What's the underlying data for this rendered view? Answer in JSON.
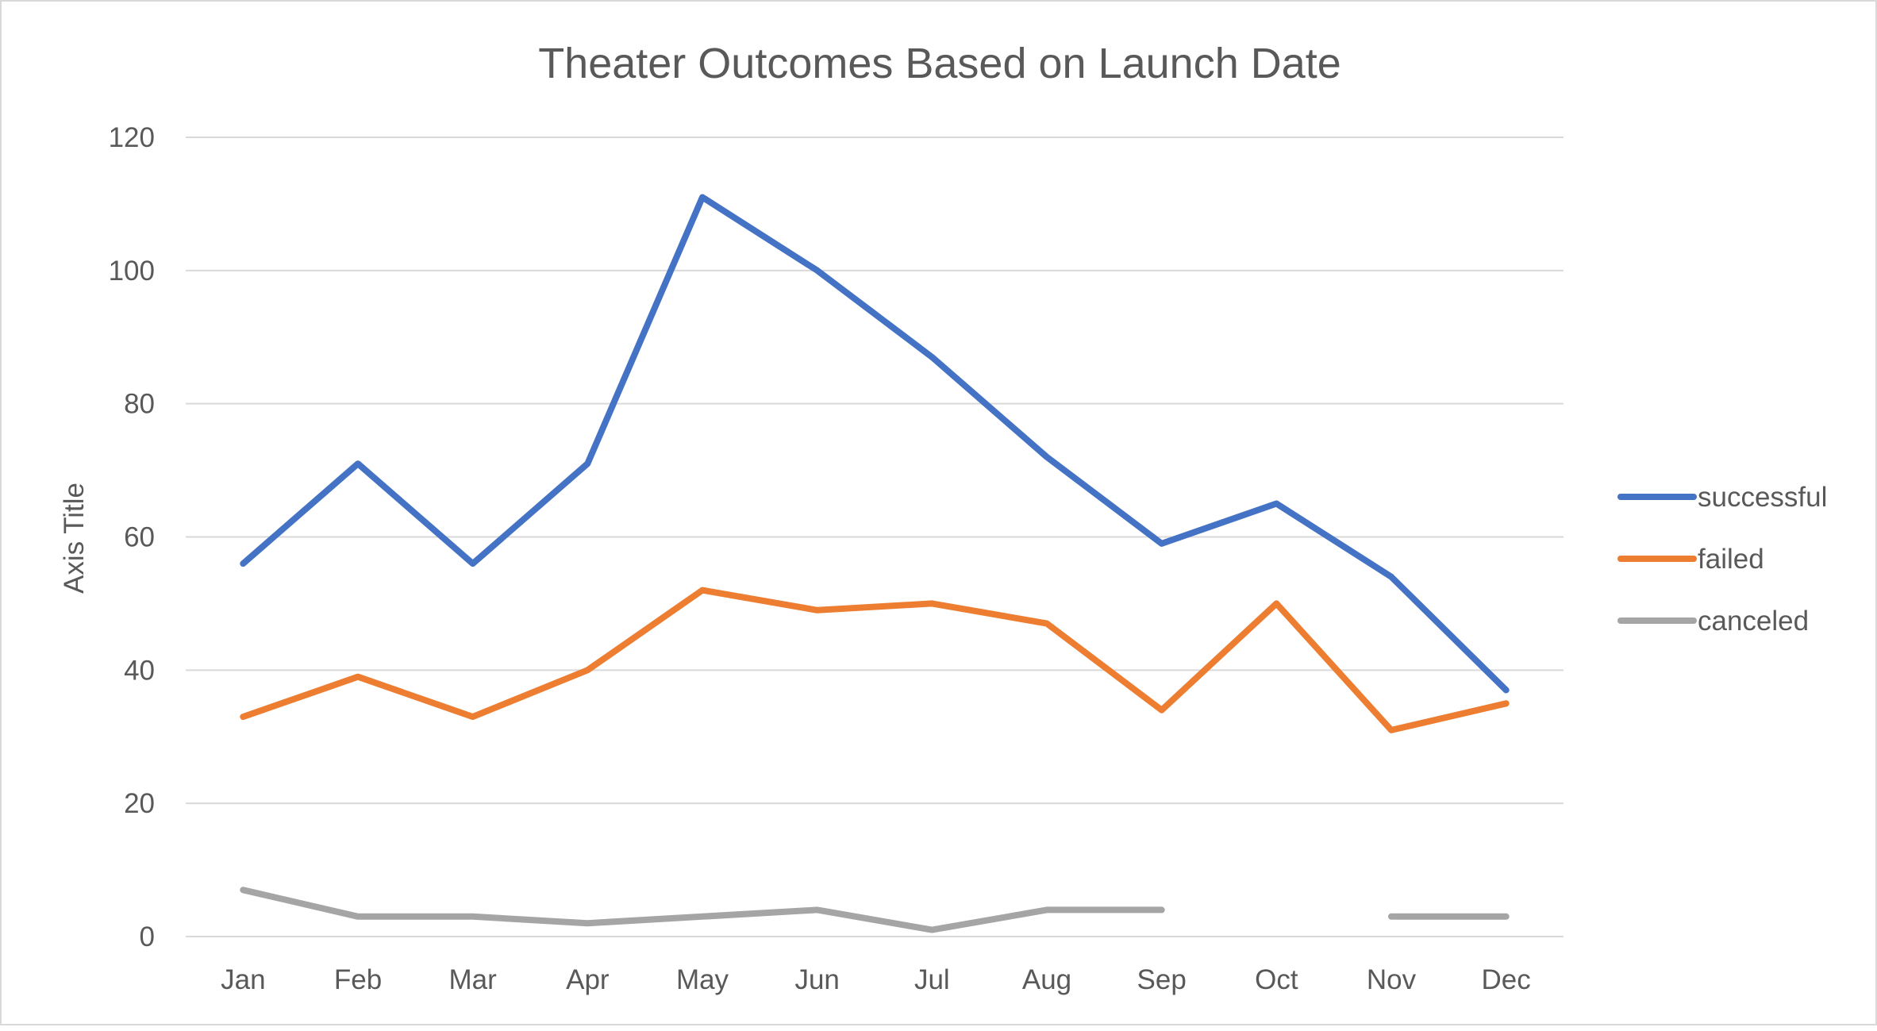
{
  "chart_data": {
    "type": "line",
    "title": "Theater Outcomes Based on Launch Date",
    "xlabel": "",
    "ylabel": "Axis Title",
    "categories": [
      "Jan",
      "Feb",
      "Mar",
      "Apr",
      "May",
      "Jun",
      "Jul",
      "Aug",
      "Sep",
      "Oct",
      "Nov",
      "Dec"
    ],
    "ylim": [
      0,
      120
    ],
    "yticks": [
      0,
      20,
      40,
      60,
      80,
      100,
      120
    ],
    "grid": true,
    "legend_position": "right",
    "series": [
      {
        "name": "successful",
        "color": "#4472C4",
        "values": [
          56,
          71,
          56,
          71,
          111,
          100,
          87,
          72,
          59,
          65,
          54,
          37
        ]
      },
      {
        "name": "failed",
        "color": "#ED7D31",
        "values": [
          33,
          39,
          33,
          40,
          52,
          49,
          50,
          47,
          34,
          50,
          31,
          35
        ]
      },
      {
        "name": "canceled",
        "color": "#A5A5A5",
        "values": [
          7,
          3,
          3,
          2,
          3,
          4,
          1,
          4,
          4,
          null,
          3,
          3
        ]
      }
    ]
  }
}
